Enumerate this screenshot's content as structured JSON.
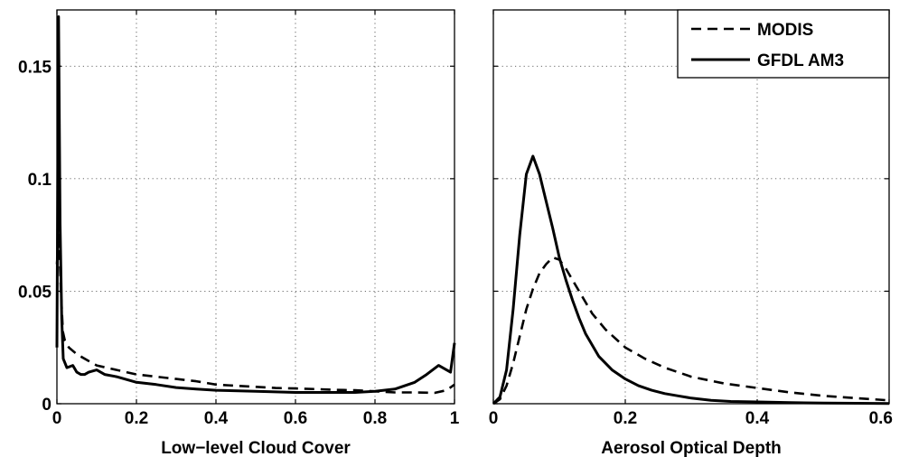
{
  "chart_data": [
    {
      "type": "line",
      "xlabel": "Low−level Cloud Cover",
      "ylabel": "",
      "xlim": [
        0,
        1
      ],
      "ylim": [
        0,
        0.175
      ],
      "xticks": [
        0,
        0.2,
        0.4,
        0.6,
        0.8,
        1
      ],
      "xtick_labels": [
        "0",
        "0.2",
        "0.4",
        "0.6",
        "0.8",
        "1"
      ],
      "yticks": [
        0,
        0.05,
        0.1,
        0.15
      ],
      "ytick_labels": [
        "0",
        "0.05",
        "0.1",
        "0.15"
      ],
      "grid": true,
      "series": [
        {
          "name": "MODIS",
          "style": "dashed",
          "x": [
            0.0,
            0.005,
            0.01,
            0.015,
            0.02,
            0.03,
            0.05,
            0.08,
            0.1,
            0.15,
            0.2,
            0.25,
            0.3,
            0.35,
            0.4,
            0.45,
            0.5,
            0.55,
            0.6,
            0.65,
            0.7,
            0.75,
            0.8,
            0.85,
            0.9,
            0.95,
            0.98,
            1.0
          ],
          "y": [
            0.062,
            0.076,
            0.05,
            0.032,
            0.028,
            0.025,
            0.022,
            0.019,
            0.017,
            0.015,
            0.013,
            0.012,
            0.011,
            0.01,
            0.0085,
            0.008,
            0.0075,
            0.007,
            0.0068,
            0.0065,
            0.0062,
            0.006,
            0.0055,
            0.005,
            0.005,
            0.0048,
            0.006,
            0.0085
          ]
        },
        {
          "name": "GFDL AM3",
          "style": "solid",
          "x": [
            0.0,
            0.004,
            0.008,
            0.012,
            0.016,
            0.025,
            0.04,
            0.05,
            0.06,
            0.07,
            0.08,
            0.1,
            0.12,
            0.15,
            0.2,
            0.25,
            0.3,
            0.35,
            0.4,
            0.5,
            0.6,
            0.7,
            0.75,
            0.8,
            0.85,
            0.9,
            0.93,
            0.96,
            0.98,
            0.99,
            1.0
          ],
          "y": [
            0.025,
            0.172,
            0.08,
            0.038,
            0.02,
            0.016,
            0.017,
            0.014,
            0.013,
            0.013,
            0.014,
            0.015,
            0.013,
            0.012,
            0.0095,
            0.0085,
            0.0072,
            0.0065,
            0.006,
            0.0055,
            0.005,
            0.005,
            0.005,
            0.0055,
            0.0065,
            0.0095,
            0.013,
            0.017,
            0.015,
            0.014,
            0.027
          ]
        }
      ]
    },
    {
      "type": "line",
      "xlabel": "Aerosol Optical Depth",
      "ylabel": "",
      "xlim": [
        0,
        0.6
      ],
      "ylim": [
        0,
        0.175
      ],
      "xticks": [
        0,
        0.2,
        0.4,
        0.6
      ],
      "xtick_labels": [
        "0",
        "0.2",
        "0.4",
        "0.6"
      ],
      "yticks": [
        0,
        0.05,
        0.1,
        0.15
      ],
      "grid": true,
      "legend": {
        "placement": "top-right",
        "entries": [
          "MODIS",
          "GFDL AM3"
        ]
      },
      "series": [
        {
          "name": "MODIS",
          "style": "dashed",
          "x": [
            0.0,
            0.01,
            0.02,
            0.03,
            0.04,
            0.05,
            0.06,
            0.07,
            0.08,
            0.09,
            0.1,
            0.11,
            0.12,
            0.13,
            0.14,
            0.15,
            0.17,
            0.2,
            0.23,
            0.26,
            0.3,
            0.35,
            0.4,
            0.45,
            0.5,
            0.55,
            0.6
          ],
          "y": [
            0.0,
            0.002,
            0.008,
            0.018,
            0.03,
            0.042,
            0.051,
            0.058,
            0.062,
            0.065,
            0.064,
            0.06,
            0.055,
            0.05,
            0.045,
            0.04,
            0.033,
            0.025,
            0.02,
            0.016,
            0.012,
            0.009,
            0.007,
            0.005,
            0.0035,
            0.0025,
            0.0015
          ]
        },
        {
          "name": "GFDL AM3",
          "style": "solid",
          "x": [
            0.0,
            0.01,
            0.02,
            0.03,
            0.04,
            0.05,
            0.06,
            0.07,
            0.08,
            0.09,
            0.1,
            0.11,
            0.12,
            0.13,
            0.14,
            0.15,
            0.16,
            0.18,
            0.2,
            0.22,
            0.24,
            0.26,
            0.28,
            0.3,
            0.33,
            0.36,
            0.4,
            0.45,
            0.5,
            0.55,
            0.6
          ],
          "y": [
            0.0,
            0.003,
            0.015,
            0.042,
            0.075,
            0.102,
            0.11,
            0.102,
            0.09,
            0.078,
            0.065,
            0.055,
            0.046,
            0.038,
            0.031,
            0.026,
            0.021,
            0.015,
            0.011,
            0.008,
            0.006,
            0.0045,
            0.0035,
            0.0025,
            0.0015,
            0.001,
            0.0008,
            0.0005,
            0.0003,
            0.0002,
            0.0001
          ]
        }
      ]
    }
  ]
}
